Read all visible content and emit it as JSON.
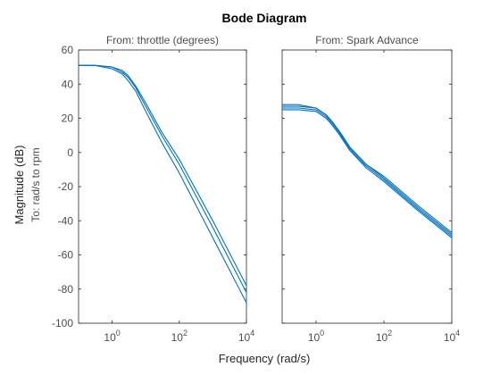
{
  "chart_data": {
    "type": "line",
    "title": "Bode Diagram",
    "xlabel": "Frequency (rad/s)",
    "ylabel": "Magnitude (dB)",
    "output_label": "To: rad/s to rpm",
    "xscale": "log",
    "xlim": [
      0.1,
      10000
    ],
    "ylim": [
      -100,
      60
    ],
    "yticks": [
      60,
      40,
      20,
      0,
      -20,
      -40,
      -60,
      -80,
      -100
    ],
    "xticks": [
      {
        "base": "10",
        "exp": "0"
      },
      {
        "base": "10",
        "exp": "2"
      },
      {
        "base": "10",
        "exp": "4"
      }
    ],
    "grid": false,
    "line_color": "#0072bd",
    "panels": [
      {
        "subtitle": "From: throttle (degrees)",
        "series": [
          {
            "x": [
              0.1,
              0.3,
              1,
              2,
              3,
              5,
              10,
              30,
              100,
              1000,
              10000
            ],
            "y": [
              51,
              51,
              50,
              48,
              45,
              39,
              29,
              12,
              -4,
              -40,
              -78
            ]
          },
          {
            "x": [
              0.1,
              0.3,
              1,
              2,
              3,
              5,
              10,
              30,
              100,
              1000,
              10000
            ],
            "y": [
              51,
              51,
              50,
              47,
              44,
              38,
              27,
              10,
              -7,
              -44,
              -82
            ]
          },
          {
            "x": [
              0.1,
              0.3,
              1,
              2,
              3,
              5,
              10,
              30,
              100,
              1000,
              10000
            ],
            "y": [
              51,
              51,
              49,
              46,
              42,
              36,
              24,
              6,
              -12,
              -50,
              -88
            ]
          }
        ]
      },
      {
        "subtitle": "From: Spark Advance",
        "series": [
          {
            "x": [
              0.1,
              0.3,
              1,
              2,
              3,
              5,
              10,
              30,
              100,
              1000,
              10000
            ],
            "y": [
              28,
              28,
              26,
              22,
              18,
              12,
              3,
              -7,
              -14,
              -31,
              -47
            ]
          },
          {
            "x": [
              0.1,
              0.3,
              1,
              2,
              3,
              5,
              10,
              30,
              100,
              1000,
              10000
            ],
            "y": [
              27,
              27,
              26,
              22,
              18,
              12,
              3,
              -7,
              -15,
              -32,
              -48
            ]
          },
          {
            "x": [
              0.1,
              0.3,
              1,
              2,
              3,
              5,
              10,
              30,
              100,
              1000,
              10000
            ],
            "y": [
              26,
              26,
              25,
              21,
              17,
              11,
              2,
              -8,
              -16,
              -33,
              -49
            ]
          },
          {
            "x": [
              0.1,
              0.3,
              1,
              2,
              3,
              5,
              10,
              30,
              100,
              1000,
              10000
            ],
            "y": [
              25,
              25,
              24,
              20,
              16,
              10,
              1,
              -9,
              -17,
              -34,
              -50
            ]
          }
        ]
      }
    ]
  }
}
